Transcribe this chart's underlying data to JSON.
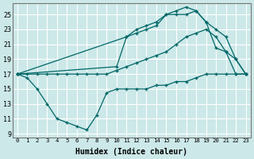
{
  "xlabel": "Humidex (Indice chaleur)",
  "bg_color": "#cce8e8",
  "grid_color": "#ffffff",
  "line_color": "#006666",
  "xlim": [
    -0.5,
    23.5
  ],
  "ylim": [
    8.5,
    26.5
  ],
  "xticks": [
    0,
    1,
    2,
    3,
    4,
    5,
    6,
    7,
    8,
    9,
    10,
    11,
    12,
    13,
    14,
    15,
    16,
    17,
    18,
    19,
    20,
    21,
    22,
    23
  ],
  "yticks": [
    9,
    11,
    13,
    15,
    17,
    19,
    21,
    23,
    25
  ],
  "line1_x": [
    0,
    1,
    2,
    3,
    4,
    5,
    6,
    7,
    8,
    9,
    10,
    11,
    12,
    13,
    14,
    15,
    16,
    17,
    18,
    19,
    20,
    21,
    22,
    23
  ],
  "line1_y": [
    17,
    16.5,
    15,
    13,
    11,
    10.5,
    10,
    9.5,
    11.5,
    14.5,
    15,
    15,
    15,
    15,
    15.5,
    15.5,
    16,
    16,
    16.5,
    17,
    17,
    17,
    17,
    17
  ],
  "line2_x": [
    0,
    1,
    2,
    3,
    4,
    5,
    6,
    7,
    8,
    9,
    10,
    11,
    12,
    13,
    14,
    15,
    16,
    17,
    18,
    19,
    20,
    21,
    22,
    23
  ],
  "line2_y": [
    17,
    17,
    17,
    17,
    17,
    17,
    17,
    17,
    17,
    17,
    17.5,
    18,
    18.5,
    19,
    19.5,
    20,
    21,
    22,
    22.5,
    23,
    22,
    20,
    19,
    17
  ],
  "line3_x": [
    0,
    11,
    12,
    13,
    14,
    15,
    16,
    17,
    18,
    19,
    20,
    21,
    22,
    23
  ],
  "line3_y": [
    17,
    22,
    22.5,
    23,
    23.5,
    25,
    25,
    25,
    25.5,
    24,
    20.5,
    20,
    17,
    17
  ],
  "line4_x": [
    0,
    10,
    11,
    12,
    13,
    14,
    15,
    16,
    17,
    18,
    19,
    20,
    21,
    22,
    23
  ],
  "line4_y": [
    17,
    18,
    22,
    23,
    23.5,
    24,
    25,
    25.5,
    26,
    25.5,
    24,
    23,
    22,
    19,
    17
  ]
}
